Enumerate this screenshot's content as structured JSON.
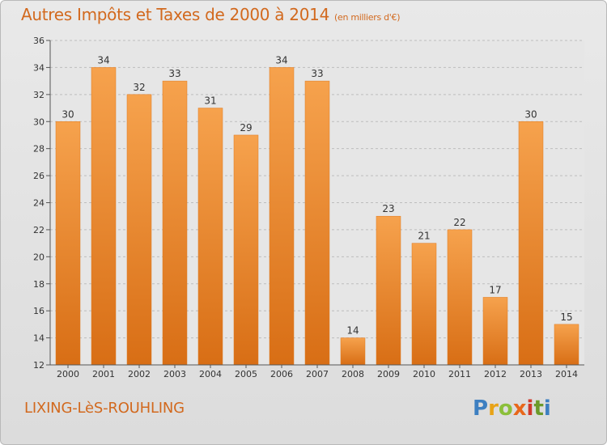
{
  "header": {
    "title": "Autres Impôts et Taxes de 2000 à 2014",
    "unit": "(en milliers d'€)"
  },
  "footer": {
    "location": "LIXING-LèS-ROUHLING",
    "logo": [
      "P",
      "r",
      "o",
      "x",
      "i",
      "t",
      "i"
    ],
    "logo_colors": [
      "#3d7fc1",
      "#e8a317",
      "#8bbf3a",
      "#e8671a",
      "#d0392b",
      "#6c9a2a",
      "#3d7fc1"
    ]
  },
  "colors": {
    "bar_top": "#f6a24d",
    "bar_bottom": "#d86e15",
    "bar_edge": "#e07a20",
    "accent": "#d2691e"
  },
  "chart_data": {
    "type": "bar",
    "categories": [
      "2000",
      "2001",
      "2002",
      "2003",
      "2004",
      "2005",
      "2006",
      "2007",
      "2008",
      "2009",
      "2010",
      "2011",
      "2012",
      "2013",
      "2014"
    ],
    "values": [
      30,
      34,
      32,
      33,
      31,
      29,
      34,
      33,
      14,
      23,
      21,
      22,
      17,
      30,
      15
    ],
    "ylim": [
      12,
      36
    ],
    "yticks": [
      12,
      14,
      16,
      18,
      20,
      22,
      24,
      26,
      28,
      30,
      32,
      34,
      36
    ],
    "grid": "horizontal dashed",
    "xlabel": "",
    "ylabel": ""
  }
}
